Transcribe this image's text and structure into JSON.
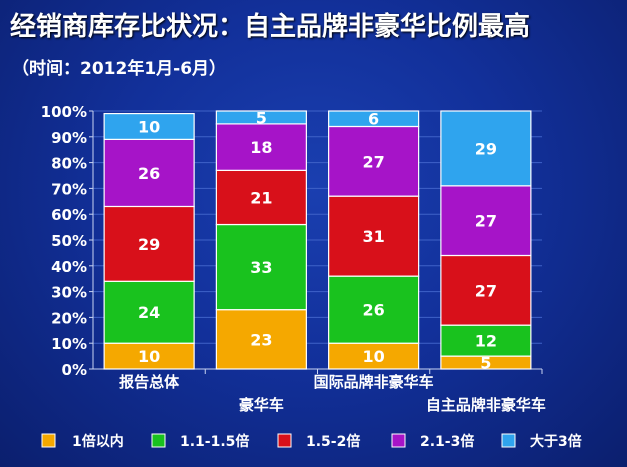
{
  "title": "经销商库存比状况：自主品牌非豪华比例最高",
  "subtitle": "（时间：2012年1月-6月）",
  "chart_data": {
    "type": "bar",
    "stacked": true,
    "percent": true,
    "categories": [
      "报告总体",
      "豪华车",
      "国际品牌非豪华车",
      "自主品牌非豪华车"
    ],
    "series": [
      {
        "name": "1倍以内",
        "values": [
          10,
          23,
          10,
          5
        ],
        "color": "#f5a800"
      },
      {
        "name": "1.1-1.5倍",
        "values": [
          24,
          33,
          26,
          12
        ],
        "color": "#19c21e"
      },
      {
        "name": "1.5-2倍",
        "values": [
          29,
          21,
          31,
          27
        ],
        "color": "#d8101a"
      },
      {
        "name": "2.1-3倍",
        "values": [
          26,
          18,
          27,
          27
        ],
        "color": "#a614c8"
      },
      {
        "name": "大于3倍",
        "values": [
          10,
          5,
          6,
          29
        ],
        "color": "#2fa4ee"
      }
    ],
    "y_ticks": [
      "0%",
      "10%",
      "20%",
      "30%",
      "40%",
      "50%",
      "60%",
      "70%",
      "80%",
      "90%",
      "100%"
    ],
    "ylim": [
      0,
      100
    ],
    "legend_position": "bottom"
  }
}
